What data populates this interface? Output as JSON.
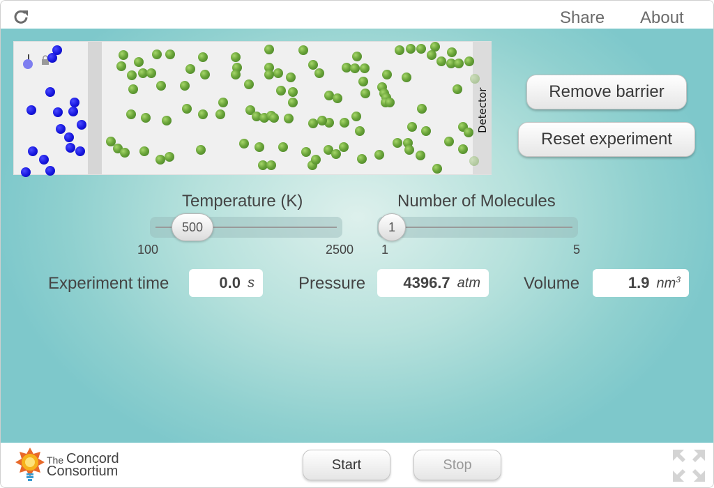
{
  "topbar": {
    "share_label": "Share",
    "about_label": "About",
    "reload_icon": "reload-icon"
  },
  "simulation": {
    "detector_label": "Detector",
    "blue_color": "#1515dd",
    "green_color": "#6ba53a"
  },
  "buttons": {
    "remove_barrier": "Remove barrier",
    "reset_experiment": "Reset experiment"
  },
  "temperature": {
    "title": "Temperature (K)",
    "value": "500",
    "min": "100",
    "max": "2500",
    "fraction": 0.167
  },
  "molecules": {
    "title": "Number of Molecules",
    "value": "1",
    "min": "1",
    "max": "5",
    "fraction": 0.0
  },
  "outputs": {
    "time": {
      "label": "Experiment time",
      "value": "0.0",
      "unit": "s"
    },
    "pressure": {
      "label": "Pressure",
      "value": "4396.7",
      "unit": "atm"
    },
    "volume": {
      "label": "Volume",
      "value": "1.9",
      "unit": "nm",
      "unit_sup": "3"
    }
  },
  "footer": {
    "logo_the": "The",
    "logo_line1": "Concord",
    "logo_line2": "Consortium",
    "start_label": "Start",
    "stop_label": "Stop"
  }
}
